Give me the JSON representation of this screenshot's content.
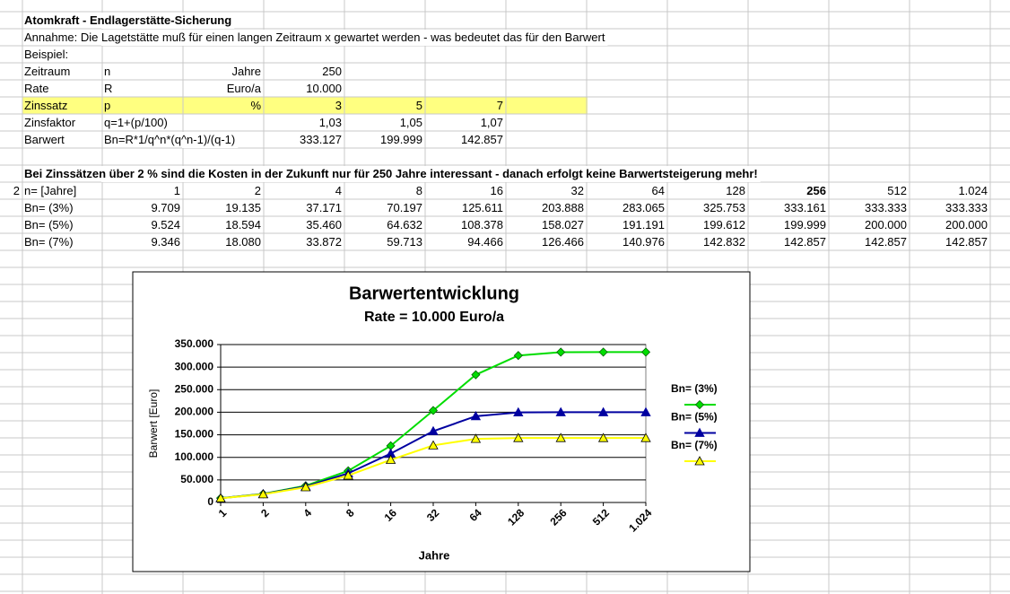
{
  "sheet": {
    "rows": [
      [
        null,
        "Atomkraft - Endlagerstätte-Sicherung"
      ],
      [
        null,
        "Annahme: Die Lagetstätte muß für einen langen Zeitraum x gewartet  werden - was bedeutet das für den Barwert"
      ],
      [
        null,
        "Beispiel:"
      ],
      [
        null,
        "Zeitraum",
        "n",
        "Jahre",
        "250"
      ],
      [
        null,
        "Rate",
        "R",
        "Euro/a",
        "10.000"
      ],
      [
        null,
        "Zinssatz",
        "p",
        "%",
        "3",
        "5",
        "7"
      ],
      [
        null,
        "Zinsfaktor",
        "q=1+(p/100)",
        null,
        "1,03",
        "1,05",
        "1,07"
      ],
      [
        null,
        "Barwert",
        "Bn=R*1/q^n*(q^n-1)/(q-1)",
        null,
        "333.127",
        "199.999",
        "142.857"
      ],
      [],
      [
        null,
        "Bei Zinssätzen über 2 % sind die Kosten in der Zukunft nur für 250 Jahre interessant - danach erfolgt keine Barwertsteigerung mehr!"
      ],
      [
        "2",
        "n=  [Jahre]",
        "1",
        "2",
        "4",
        "8",
        "16",
        "32",
        "64",
        "128",
        "256",
        "512",
        "1.024"
      ],
      [
        null,
        "Bn=  (3%)",
        "9.709",
        "19.135",
        "37.171",
        "70.197",
        "125.611",
        "203.888",
        "283.065",
        "325.753",
        "333.161",
        "333.333",
        "333.333"
      ],
      [
        null,
        "Bn=  (5%)",
        "9.524",
        "18.594",
        "35.460",
        "64.632",
        "108.378",
        "158.027",
        "191.191",
        "199.612",
        "199.999",
        "200.000",
        "200.000"
      ],
      [
        null,
        "Bn=  (7%)",
        "9.346",
        "18.080",
        "33.872",
        "59.713",
        "94.466",
        "126.466",
        "140.976",
        "142.832",
        "142.857",
        "142.857",
        "142.857"
      ]
    ]
  },
  "chart_data": {
    "type": "line",
    "title": "Barwertentwicklung",
    "subtitle": "Rate = 10.000 Euro/a",
    "x_label": "Jahre",
    "y_label": "Barwert [Euro]",
    "categories": [
      "1",
      "2",
      "4",
      "8",
      "16",
      "32",
      "64",
      "128",
      "256",
      "512",
      "1.024"
    ],
    "series": [
      {
        "name": "Bn=  (3%)",
        "color": "#00dd00",
        "marker": "diamond",
        "values": [
          9709,
          19135,
          37171,
          70197,
          125611,
          203888,
          283065,
          325753,
          333161,
          333333,
          333333
        ]
      },
      {
        "name": "Bn=  (5%)",
        "color": "#0000a0",
        "marker": "triangle",
        "values": [
          9524,
          18594,
          35460,
          64632,
          108378,
          158027,
          191191,
          199612,
          199999,
          200000,
          200000
        ]
      },
      {
        "name": "Bn=  (7%)",
        "color": "#ffff00",
        "marker": "triangle-open",
        "values": [
          9346,
          18080,
          33872,
          59713,
          94466,
          126466,
          140976,
          142832,
          142857,
          142857,
          142857
        ]
      }
    ],
    "ylim": [
      0,
      350000
    ],
    "yticks": [
      0,
      {
        "value": 50000,
        "label": "50.000"
      },
      {
        "value": 100000,
        "label": "100.000"
      },
      {
        "value": 150000,
        "label": "150.000"
      },
      {
        "value": 200000,
        "label": "200.000"
      },
      {
        "value": 250000,
        "label": "250.000"
      },
      {
        "value": 300000,
        "label": "300.000"
      },
      {
        "value": 350000,
        "label": "350.000"
      }
    ],
    "grid": true,
    "legend": "right"
  }
}
